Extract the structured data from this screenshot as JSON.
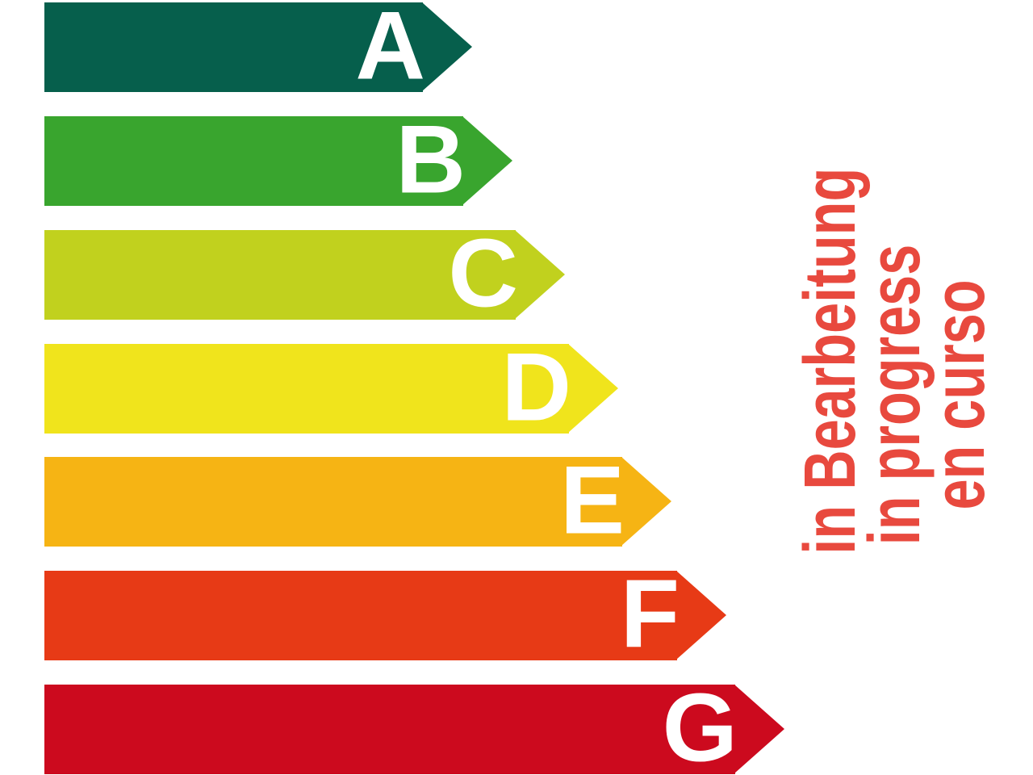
{
  "page": {
    "background": "#ffffff"
  },
  "chart_data": {
    "type": "bar",
    "title": "",
    "xlabel": "",
    "ylabel": "",
    "orientation": "horizontal",
    "categories": [
      "A",
      "B",
      "C",
      "D",
      "E",
      "F",
      "G"
    ],
    "series": [
      {
        "name": "arrow-length-px",
        "values": [
          530,
          580,
          645,
          711,
          777,
          845,
          917
        ]
      }
    ],
    "bar_colors": [
      "#065F4C",
      "#39A52E",
      "#C1D11E",
      "#F0E41C",
      "#F6B414",
      "#E73A16",
      "#CC0A1E"
    ],
    "letter_color": "#ffffff",
    "grid": false,
    "legend": false,
    "annotations": [
      "in Bearbeitung",
      "in progress",
      "en curso"
    ]
  },
  "arrows": [
    {
      "label": "A",
      "color": "#065F4C",
      "length": 530
    },
    {
      "label": "B",
      "color": "#39A52E",
      "length": 580
    },
    {
      "label": "C",
      "color": "#C1D11E",
      "length": 645
    },
    {
      "label": "D",
      "color": "#F0E41C",
      "length": 711
    },
    {
      "label": "E",
      "color": "#F6B414",
      "length": 777
    },
    {
      "label": "F",
      "color": "#E73A16",
      "length": 845
    },
    {
      "label": "G",
      "color": "#CC0A1E",
      "length": 917
    }
  ],
  "watermark": {
    "color": "#E8493E",
    "lines": [
      "in Bearbeitung",
      "in progress",
      "en curso"
    ]
  }
}
